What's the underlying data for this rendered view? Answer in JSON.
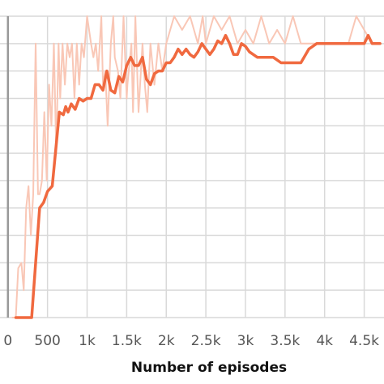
{
  "chart_data": {
    "type": "line",
    "title": "",
    "xlabel": "Number of episodes",
    "ylabel": "",
    "xlim": [
      -100,
      4750
    ],
    "ylim": [
      0,
      11
    ],
    "grid": true,
    "xticks": [
      0,
      500,
      1000,
      1500,
      2000,
      2500,
      3000,
      3500,
      4000,
      4500
    ],
    "xtick_labels": [
      "0",
      "500",
      "1k",
      "1.5k",
      "2k",
      "2.5k",
      "3k",
      "3.5k",
      "4k",
      "4.5k"
    ],
    "yticks": [
      0,
      1,
      2,
      3,
      4,
      5,
      6,
      7,
      8,
      9,
      10,
      11
    ],
    "colors": {
      "smoothed": "#f0693f",
      "raw": "#f9c7b6",
      "grid": "#d9d9d9",
      "axis": "#999999"
    },
    "series": [
      {
        "role": "raw",
        "x": [
          50,
          100,
          130,
          170,
          200,
          230,
          260,
          290,
          320,
          350,
          380,
          400,
          430,
          460,
          490,
          520,
          550,
          580,
          610,
          640,
          660,
          690,
          720,
          750,
          780,
          810,
          840,
          870,
          900,
          930,
          960,
          1000,
          1050,
          1080,
          1110,
          1140,
          1180,
          1200,
          1230,
          1260,
          1300,
          1330,
          1350,
          1390,
          1420,
          1460,
          1500,
          1510,
          1560,
          1580,
          1610,
          1650,
          1700,
          1730,
          1760,
          1800,
          1850,
          1900,
          1950,
          2000,
          2100,
          2200,
          2300,
          2400,
          2460,
          2500,
          2600,
          2700,
          2800,
          2900,
          3000,
          3100,
          3200,
          3300,
          3400,
          3500,
          3600,
          3700,
          3800,
          3900,
          4000,
          4100,
          4200,
          4300,
          4400,
          4600
        ],
        "values": [
          0,
          0,
          1.8,
          2,
          1,
          4,
          4.8,
          3,
          4.5,
          10,
          4.5,
          4.5,
          5,
          7.5,
          5,
          8.5,
          7,
          10,
          6,
          10,
          8,
          10,
          8.5,
          10,
          9.5,
          10,
          8,
          10,
          8.5,
          10,
          9.5,
          11,
          10,
          9.5,
          10,
          9,
          11,
          8.5,
          9,
          7,
          10,
          11,
          9.5,
          9,
          8,
          11,
          8,
          8.5,
          10,
          7.5,
          11,
          7.5,
          10,
          8.5,
          7.5,
          10,
          8.5,
          10,
          9,
          10,
          11,
          10.5,
          11,
          10,
          11,
          10,
          11,
          10.5,
          11,
          10,
          10.5,
          10,
          11,
          10,
          10.5,
          10,
          11,
          10,
          10,
          10,
          10,
          10,
          10,
          10,
          11,
          10
        ]
      },
      {
        "role": "smoothed",
        "x": [
          100,
          200,
          300,
          400,
          450,
          500,
          560,
          600,
          650,
          700,
          730,
          760,
          800,
          850,
          900,
          950,
          1000,
          1050,
          1100,
          1150,
          1200,
          1250,
          1300,
          1350,
          1400,
          1450,
          1500,
          1550,
          1600,
          1650,
          1700,
          1750,
          1800,
          1850,
          1900,
          1950,
          2000,
          2050,
          2100,
          2150,
          2200,
          2250,
          2300,
          2350,
          2400,
          2450,
          2500,
          2550,
          2600,
          2650,
          2700,
          2750,
          2800,
          2850,
          2900,
          2950,
          3000,
          3050,
          3100,
          3150,
          3200,
          3300,
          3350,
          3400,
          3450,
          3500,
          3550,
          3600,
          3700,
          3800,
          3900,
          4000,
          4200,
          4400,
          4500,
          4550,
          4600,
          4700
        ],
        "values": [
          0,
          0,
          0,
          4,
          4.2,
          4.6,
          4.8,
          6,
          7.5,
          7.4,
          7.7,
          7.5,
          7.8,
          7.6,
          8.0,
          7.9,
          8.0,
          8.0,
          8.5,
          8.5,
          8.3,
          9.0,
          8.3,
          8.2,
          8.8,
          8.6,
          9.2,
          9.5,
          9.2,
          9.2,
          9.5,
          8.7,
          8.5,
          8.9,
          9.0,
          9.0,
          9.3,
          9.3,
          9.5,
          9.8,
          9.6,
          9.8,
          9.6,
          9.5,
          9.7,
          10.0,
          9.8,
          9.6,
          9.8,
          10.1,
          10.0,
          10.3,
          10.0,
          9.6,
          9.6,
          10.0,
          9.9,
          9.7,
          9.6,
          9.5,
          9.5,
          9.5,
          9.5,
          9.4,
          9.3,
          9.3,
          9.3,
          9.3,
          9.3,
          9.8,
          10.0,
          10.0,
          10.0,
          10.0,
          10.0,
          10.3,
          10.0,
          10.0
        ]
      }
    ]
  }
}
